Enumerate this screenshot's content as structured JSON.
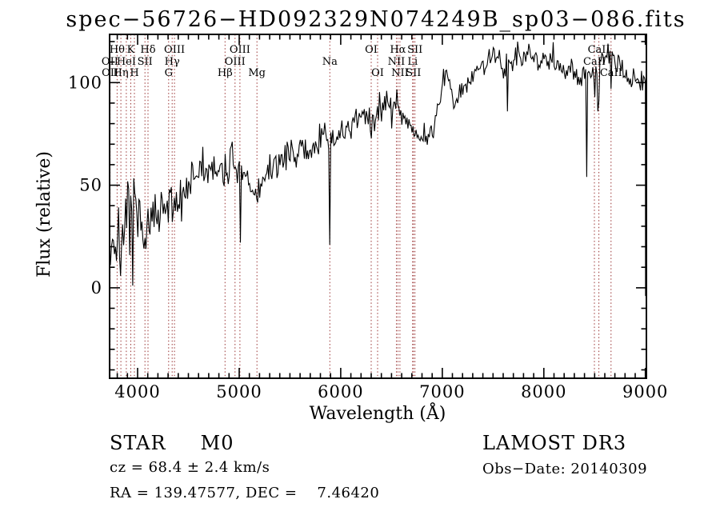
{
  "title": "spec−56726−HD092329N074249B_sp03−086.fits",
  "footer": {
    "class_line": "STAR     M0",
    "cz_line": "cz = 68.4 ± 2.4 km/s",
    "radec_line": "RA = 139.47577, DEC =    7.46420",
    "survey": "LAMOST DR3",
    "obs_date": "Obs−Date: 20140309"
  },
  "chart_data": {
    "type": "line",
    "title": "spec−56726−HD092329N074249B_sp03−086.fits",
    "xlabel": "Wavelength (Å)",
    "ylabel": "Flux (relative)",
    "xlim": [
      3724,
      9010
    ],
    "ylim": [
      -44.1,
      123.5
    ],
    "x_ticks": [
      4000,
      5000,
      6000,
      7000,
      8000,
      9000
    ],
    "x_minor_step": 100,
    "y_ticks": [
      0,
      50,
      100
    ],
    "y_minor_step": 10,
    "grid": false,
    "legend": "none",
    "line_color": "#000000",
    "marker_color": "#993333",
    "noise_seed": 7,
    "series_name": "flux",
    "envelope": [
      [
        3724,
        18
      ],
      [
        3740,
        22
      ],
      [
        3770,
        24
      ],
      [
        3800,
        23
      ],
      [
        3830,
        25
      ],
      [
        3860,
        27
      ],
      [
        3900,
        28
      ],
      [
        3950,
        30
      ],
      [
        4000,
        30
      ],
      [
        4050,
        31
      ],
      [
        4100,
        31
      ],
      [
        4150,
        32
      ],
      [
        4200,
        33
      ],
      [
        4250,
        34
      ],
      [
        4305,
        36
      ],
      [
        4340,
        40
      ],
      [
        4380,
        43
      ],
      [
        4450,
        47
      ],
      [
        4520,
        52
      ],
      [
        4600,
        57
      ],
      [
        4640,
        60
      ],
      [
        4690,
        57
      ],
      [
        4740,
        53
      ],
      [
        4790,
        56
      ],
      [
        4840,
        59
      ],
      [
        4861,
        57
      ],
      [
        4880,
        60
      ],
      [
        4920,
        62
      ],
      [
        4960,
        61
      ],
      [
        5000,
        58
      ],
      [
        5050,
        53
      ],
      [
        5100,
        50
      ],
      [
        5140,
        48
      ],
      [
        5175,
        46
      ],
      [
        5210,
        50
      ],
      [
        5260,
        54
      ],
      [
        5320,
        58
      ],
      [
        5400,
        62
      ],
      [
        5480,
        66
      ],
      [
        5550,
        68
      ],
      [
        5620,
        65
      ],
      [
        5700,
        67
      ],
      [
        5780,
        70
      ],
      [
        5850,
        72
      ],
      [
        5890,
        71
      ],
      [
        5920,
        72
      ],
      [
        6000,
        75
      ],
      [
        6080,
        78
      ],
      [
        6160,
        81
      ],
      [
        6240,
        83
      ],
      [
        6300,
        80
      ],
      [
        6340,
        83
      ],
      [
        6420,
        87
      ],
      [
        6480,
        90
      ],
      [
        6540,
        92
      ],
      [
        6580,
        88
      ],
      [
        6640,
        82
      ],
      [
        6700,
        78
      ],
      [
        6760,
        75
      ],
      [
        6820,
        73
      ],
      [
        6880,
        73
      ],
      [
        6920,
        80
      ],
      [
        6980,
        93
      ],
      [
        7030,
        105
      ],
      [
        7070,
        100
      ],
      [
        7120,
        92
      ],
      [
        7170,
        95
      ],
      [
        7230,
        99
      ],
      [
        7300,
        103
      ],
      [
        7370,
        107
      ],
      [
        7450,
        111
      ],
      [
        7520,
        113
      ],
      [
        7580,
        110
      ],
      [
        7620,
        104
      ],
      [
        7660,
        111
      ],
      [
        7720,
        113
      ],
      [
        7800,
        114
      ],
      [
        7880,
        112
      ],
      [
        7950,
        110
      ],
      [
        8030,
        111
      ],
      [
        8100,
        112
      ],
      [
        8160,
        107
      ],
      [
        8220,
        106
      ],
      [
        8280,
        108
      ],
      [
        8340,
        102
      ],
      [
        8400,
        104
      ],
      [
        8430,
        107
      ],
      [
        8470,
        106
      ],
      [
        8520,
        108
      ],
      [
        8560,
        110
      ],
      [
        8600,
        114
      ],
      [
        8640,
        113
      ],
      [
        8680,
        111
      ],
      [
        8720,
        109
      ],
      [
        8760,
        107
      ],
      [
        8800,
        105
      ],
      [
        8850,
        103
      ],
      [
        8900,
        102
      ],
      [
        8950,
        101
      ],
      [
        9000,
        100
      ]
    ],
    "noise_regions": [
      [
        3724,
        3980,
        10
      ],
      [
        3980,
        4450,
        7
      ],
      [
        4450,
        5000,
        4.5
      ],
      [
        5000,
        5890,
        3.5
      ],
      [
        5890,
        6560,
        3.5
      ],
      [
        6560,
        7100,
        3
      ],
      [
        7100,
        8400,
        2.8
      ],
      [
        8400,
        9010,
        3.2
      ]
    ],
    "deep_dips": [
      [
        5007,
        22
      ],
      [
        5893,
        21
      ],
      [
        7638,
        86
      ],
      [
        8418,
        54
      ],
      [
        8498,
        93
      ],
      [
        8530,
        86
      ],
      [
        8542,
        91
      ],
      [
        8662,
        97
      ]
    ],
    "edge_spikes": {
      "left": [
        [
          3724,
          55
        ],
        [
          3725,
          -38
        ],
        [
          3726.5,
          14
        ]
      ],
      "right": [
        [
          9000,
          100
        ],
        [
          9001,
          -4
        ]
      ]
    },
    "line_markers": [
      {
        "label": "Hθ",
        "wavelength": 3798,
        "row": 1
      },
      {
        "label": "K",
        "wavelength": 3933,
        "row": 1
      },
      {
        "label": "Hδ",
        "wavelength": 4102,
        "row": 1
      },
      {
        "label": "OIII",
        "wavelength": 4363,
        "row": 1
      },
      {
        "label": "OIII",
        "wavelength": 5007,
        "row": 1
      },
      {
        "label": "OI",
        "wavelength": 6300,
        "row": 1
      },
      {
        "label": "Hα",
        "wavelength": 6563,
        "row": 1
      },
      {
        "label": "SII",
        "wavelength": 6731,
        "row": 1
      },
      {
        "label": "CaII",
        "wavelength": 8542,
        "row": 1
      },
      {
        "label": "OII",
        "wavelength": 3727,
        "row": 2
      },
      {
        "label": "HeI",
        "wavelength": 3889,
        "row": 2
      },
      {
        "label": "SII",
        "wavelength": 4072,
        "row": 2
      },
      {
        "label": "Hγ",
        "wavelength": 4340,
        "row": 2
      },
      {
        "label": "OIII",
        "wavelength": 4959,
        "row": 2
      },
      {
        "label": "Na",
        "wavelength": 5893,
        "row": 2
      },
      {
        "label": "NII",
        "wavelength": 6548,
        "row": 2
      },
      {
        "label": "Li",
        "wavelength": 6708,
        "row": 2
      },
      {
        "label": "CaII",
        "wavelength": 8498,
        "row": 2
      },
      {
        "label": "OII",
        "wavelength": 3729,
        "row": 3
      },
      {
        "label": "Hη",
        "wavelength": 3835,
        "row": 3
      },
      {
        "label": "H",
        "wavelength": 3968,
        "row": 3
      },
      {
        "label": "G",
        "wavelength": 4305,
        "row": 3
      },
      {
        "label": "Hβ",
        "wavelength": 4861,
        "row": 3
      },
      {
        "label": "Mg",
        "wavelength": 5175,
        "row": 3
      },
      {
        "label": "OI",
        "wavelength": 6363,
        "row": 3
      },
      {
        "label": "NII",
        "wavelength": 6583,
        "row": 3
      },
      {
        "label": "SII",
        "wavelength": 6716,
        "row": 3
      },
      {
        "label": "CaII",
        "wavelength": 8662,
        "row": 3
      }
    ]
  }
}
